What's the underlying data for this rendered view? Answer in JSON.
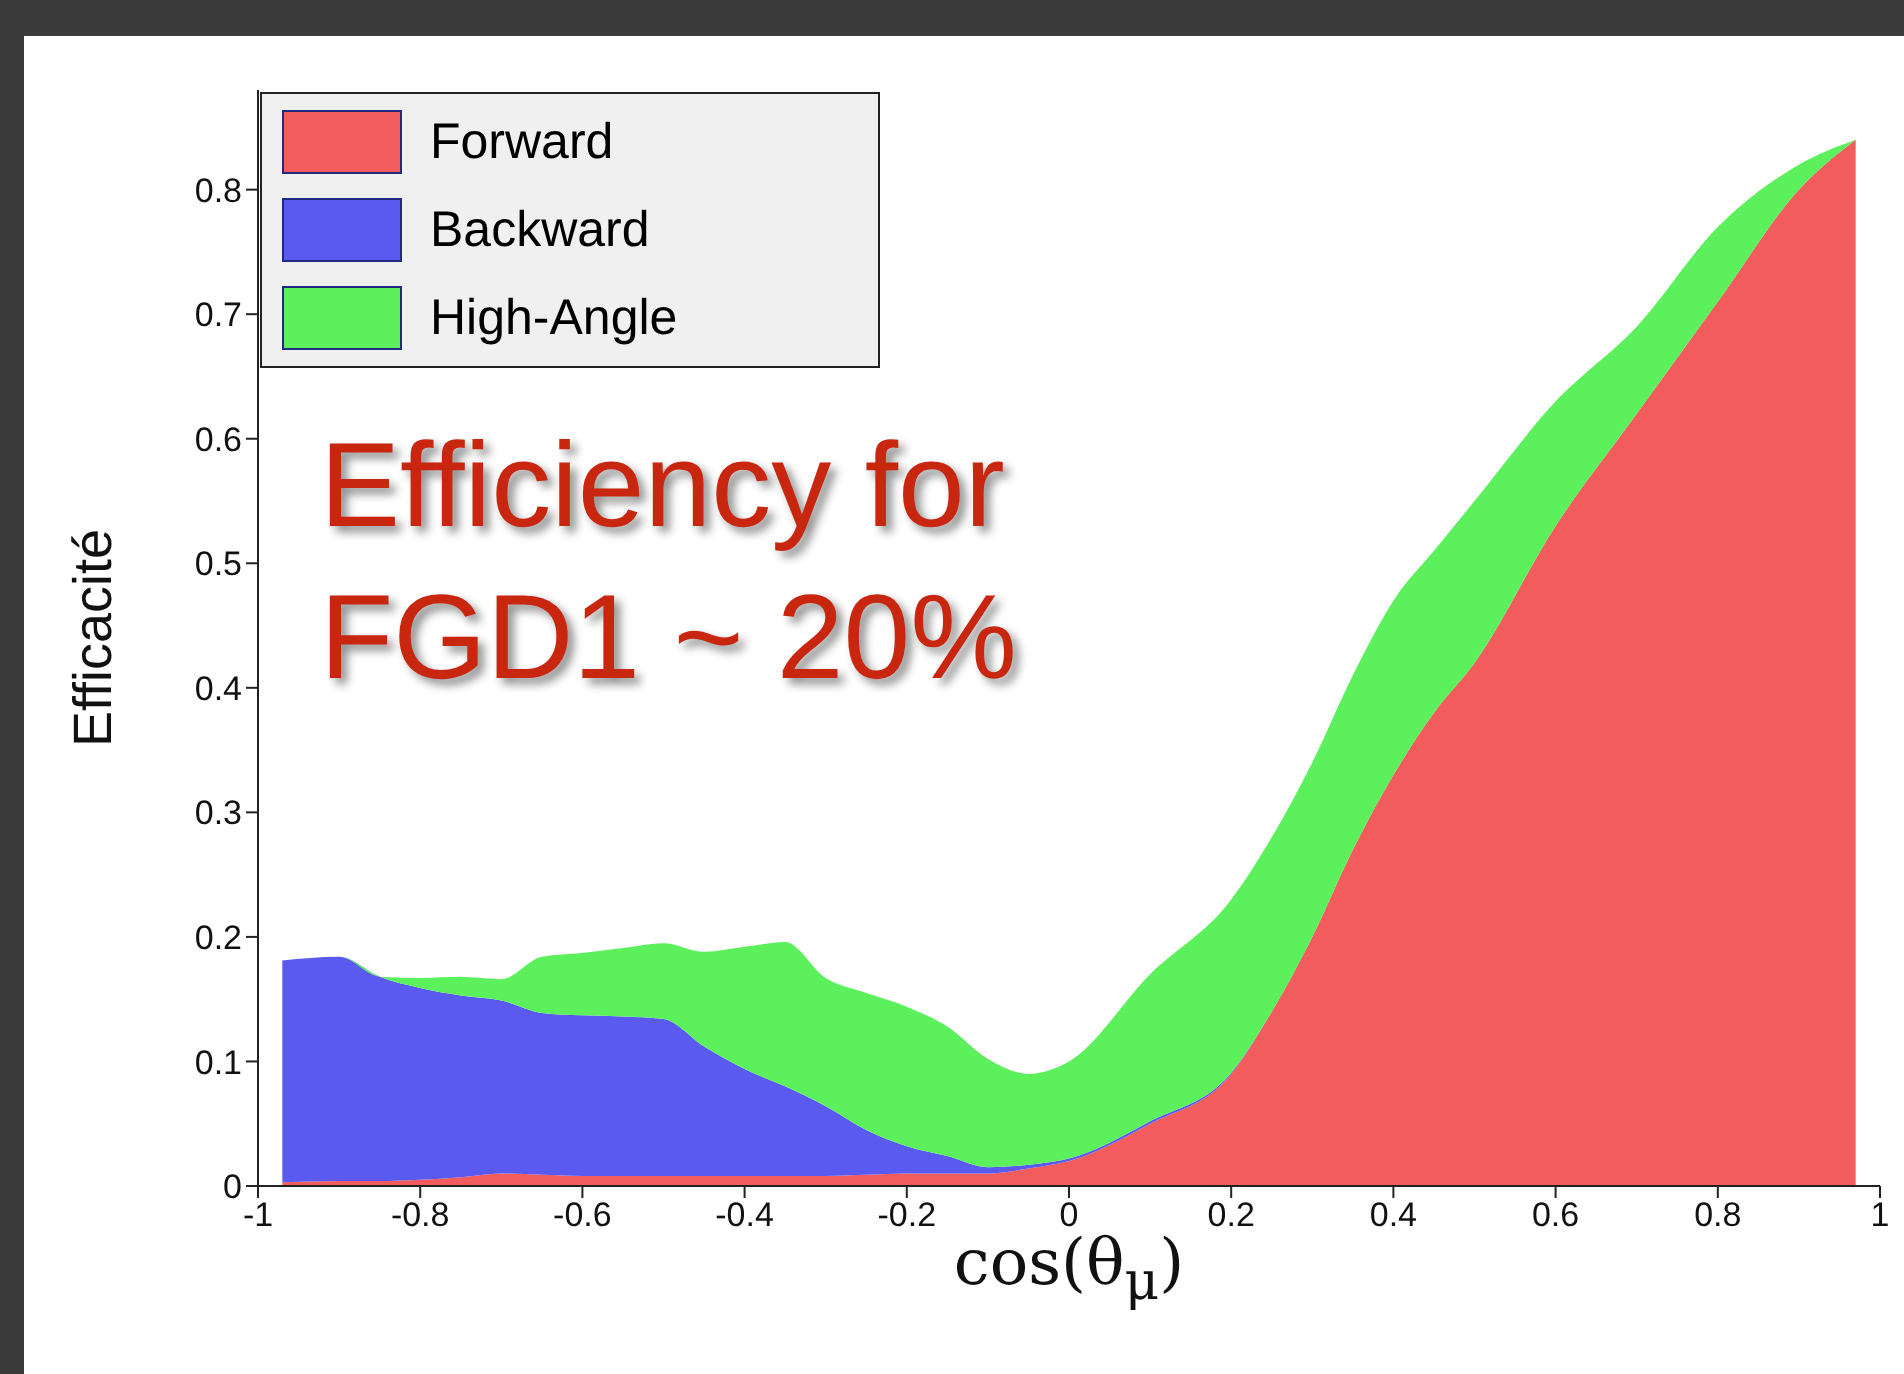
{
  "chart_data": {
    "type": "area",
    "stacked": true,
    "xlabel": "cos(θ$_{μ}$)",
    "ylabel": "Efficacité",
    "annotations": [
      "Efficiency for FGD1 ~ 20%"
    ],
    "x": [
      -0.97,
      -0.9,
      -0.85,
      -0.8,
      -0.75,
      -0.7,
      -0.65,
      -0.6,
      -0.55,
      -0.5,
      -0.45,
      -0.4,
      -0.35,
      -0.3,
      -0.25,
      -0.2,
      -0.15,
      -0.1,
      -0.05,
      0,
      0.1,
      0.2,
      0.25,
      0.3,
      0.35,
      0.4,
      0.45,
      0.5,
      0.6,
      0.7,
      0.8,
      0.9,
      0.97
    ],
    "series": [
      {
        "name": "Forward",
        "color": "#f25c5c",
        "values": [
          0.003,
          0.004,
          0.004,
          0.005,
          0.007,
          0.01,
          0.009,
          0.008,
          0.008,
          0.008,
          0.008,
          0.008,
          0.008,
          0.008,
          0.009,
          0.01,
          0.01,
          0.01,
          0.014,
          0.02,
          0.05,
          0.09,
          0.14,
          0.2,
          0.27,
          0.33,
          0.38,
          0.42,
          0.53,
          0.62,
          0.71,
          0.8,
          0.84
        ]
      },
      {
        "name": "Backward",
        "color": "#5a5af0",
        "values": [
          0.178,
          0.18,
          0.164,
          0.154,
          0.146,
          0.139,
          0.13,
          0.129,
          0.128,
          0.126,
          0.104,
          0.086,
          0.072,
          0.056,
          0.036,
          0.022,
          0.014,
          0.005,
          0.003,
          0.002,
          0.002,
          0.001,
          0,
          0,
          0,
          0,
          0,
          0,
          0,
          0,
          0,
          0,
          0
        ]
      },
      {
        "name": "High-Angle",
        "color": "#5cf05c",
        "values": [
          0,
          0,
          0,
          0.008,
          0.015,
          0.017,
          0.045,
          0.05,
          0.055,
          0.061,
          0.076,
          0.098,
          0.116,
          0.103,
          0.11,
          0.112,
          0.104,
          0.087,
          0.073,
          0.078,
          0.118,
          0.139,
          0.14,
          0.14,
          0.14,
          0.14,
          0.13,
          0.13,
          0.1,
          0.07,
          0.06,
          0.02,
          0
        ]
      }
    ],
    "xlim": [
      -1,
      1
    ],
    "xticks": [
      -1,
      -0.8,
      -0.6,
      -0.4,
      -0.2,
      0,
      0.2,
      0.4,
      0.6,
      0.8,
      1
    ],
    "ylim": [
      0,
      0.88
    ],
    "yticks": [
      0,
      0.1,
      0.2,
      0.3,
      0.4,
      0.5,
      0.6,
      0.7,
      0.8
    ],
    "grid": false,
    "legend": "top left"
  }
}
